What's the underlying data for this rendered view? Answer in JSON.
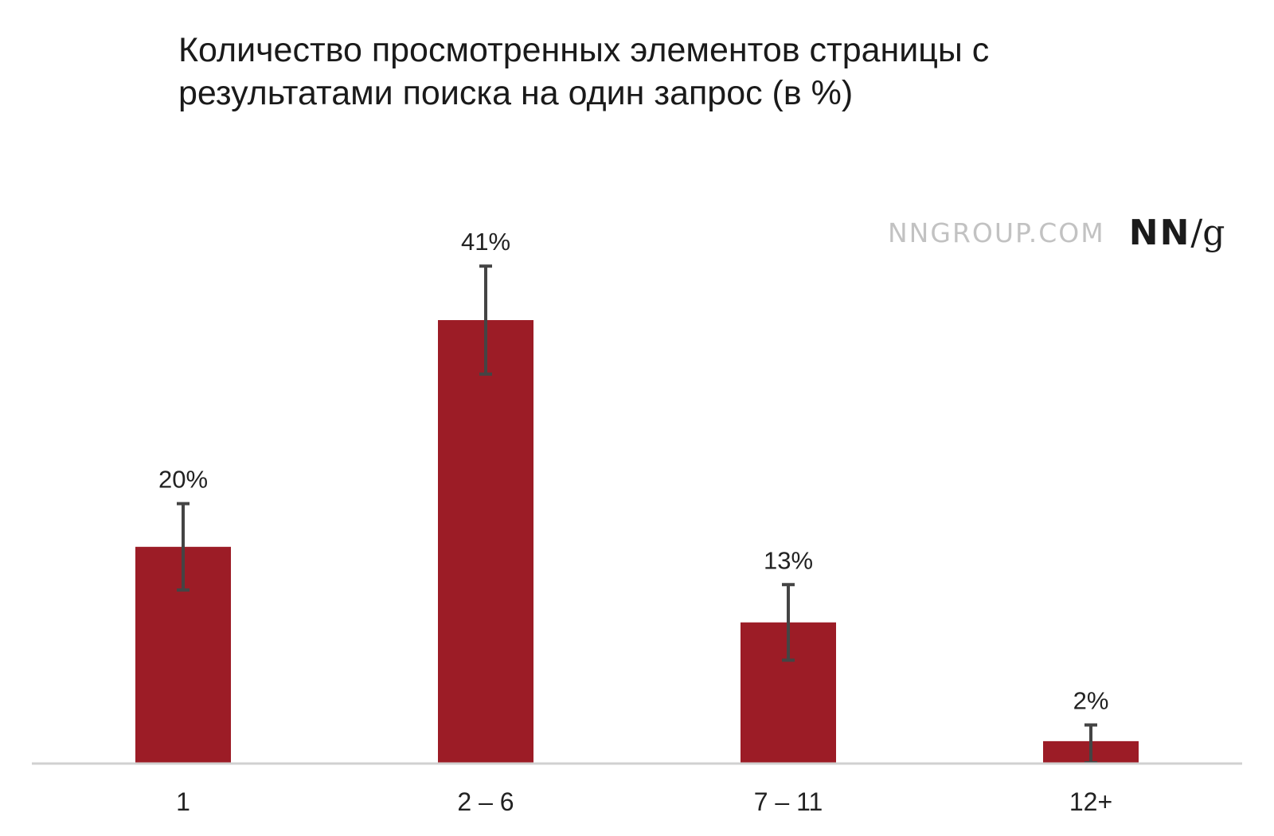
{
  "chart_data": {
    "type": "bar",
    "title_lines": [
      "Количество просмотренных элементов страницы с",
      "результатами поиска на один запрос (в %)"
    ],
    "categories": [
      "1",
      "2 – 6",
      "7 – 11",
      "12+"
    ],
    "values": [
      20,
      41,
      13,
      2
    ],
    "value_labels": [
      "20%",
      "41%",
      "13%",
      "2%"
    ],
    "error_bars": [
      {
        "low": 16,
        "high": 24
      },
      {
        "low": 36,
        "high": 46
      },
      {
        "low": 9.5,
        "high": 16.5
      },
      {
        "low": 0,
        "high": 3.5
      }
    ],
    "ylim": [
      0,
      50
    ],
    "xlabel": "",
    "ylabel": "",
    "grid": false,
    "colors": {
      "bar": "#9c1c26",
      "error_bar": "#444444",
      "axis": "#d0d0d0"
    }
  },
  "brand": {
    "url": "NNGROUP.COM",
    "logo_nn": "NN",
    "logo_sep": "/",
    "logo_g": "g"
  }
}
